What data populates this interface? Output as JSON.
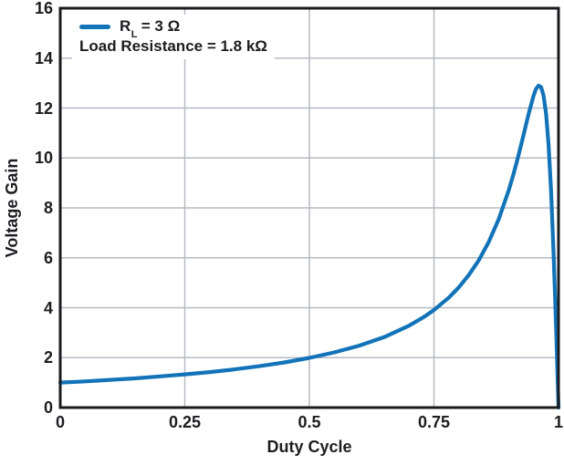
{
  "axes": {
    "x_label": "Duty Cycle",
    "y_label": "Voltage Gain"
  },
  "legend": {
    "series_label_prefix": "R",
    "series_label_sub": "L",
    "series_label_suffix": " = 3 Ω",
    "note": "Load Resistance = 1.8 kΩ"
  },
  "colors": {
    "line": "#1273b9",
    "grid": "#b6bac3",
    "axis": "#1b1b1f",
    "text": "#1d1d21",
    "background": "#ffffff"
  },
  "chart_data": {
    "type": "line",
    "title": "",
    "xlabel": "Duty Cycle",
    "ylabel": "Voltage Gain",
    "xlim": [
      0,
      1
    ],
    "ylim": [
      0,
      16
    ],
    "grid": true,
    "legend_position": "top-left",
    "x_ticks": [
      0,
      0.25,
      0.5,
      0.75,
      1
    ],
    "x_tick_labels": [
      "0",
      "0.25",
      "0.5",
      "0.75",
      "1"
    ],
    "y_ticks": [
      0,
      2,
      4,
      6,
      8,
      10,
      12,
      14,
      16
    ],
    "y_tick_labels": [
      "0",
      "2",
      "4",
      "6",
      "8",
      "10",
      "12",
      "14",
      "16"
    ],
    "annotation": "Load Resistance = 1.8 kΩ",
    "series": [
      {
        "name": "RL = 3 Ω",
        "color": "#1273b9",
        "x": [
          0,
          0.05,
          0.1,
          0.15,
          0.2,
          0.25,
          0.3,
          0.35,
          0.4,
          0.45,
          0.5,
          0.55,
          0.6,
          0.65,
          0.7,
          0.73,
          0.75,
          0.78,
          0.8,
          0.82,
          0.84,
          0.86,
          0.88,
          0.9,
          0.91,
          0.92,
          0.93,
          0.94,
          0.95,
          0.955,
          0.96,
          0.965,
          0.97,
          0.975,
          0.98,
          0.985,
          0.99,
          0.995,
          0.998,
          1
        ],
        "y": [
          1.0,
          1.05,
          1.11,
          1.17,
          1.25,
          1.33,
          1.42,
          1.53,
          1.66,
          1.81,
          1.99,
          2.21,
          2.48,
          2.82,
          3.28,
          3.63,
          3.91,
          4.41,
          4.82,
          5.31,
          5.9,
          6.64,
          7.55,
          8.7,
          9.38,
          10.13,
          10.94,
          11.76,
          12.5,
          12.77,
          12.9,
          12.84,
          12.5,
          11.76,
          10.53,
          8.7,
          6.25,
          3.28,
          1.33,
          0
        ]
      }
    ]
  }
}
